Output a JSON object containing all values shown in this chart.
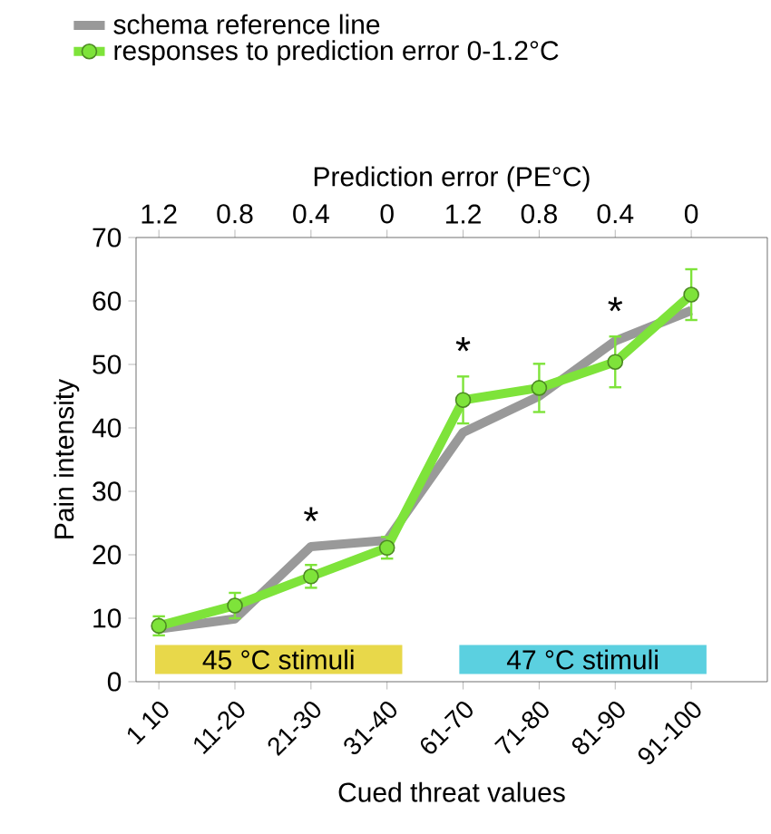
{
  "chart_data": {
    "type": "line",
    "xlabel": "Cued threat values",
    "ylabel": "Pain intensity",
    "x2label": "Prediction error (PE°C)",
    "categories": [
      "1 10",
      "11-20",
      "21-30",
      "31-40",
      "61-70",
      "71-80",
      "81-90",
      "91-100"
    ],
    "series": [
      {
        "name": "schema reference line",
        "color": "#999999",
        "marker": "none",
        "values": [
          8.3,
          9.9,
          21.3,
          22.3,
          39.3,
          45,
          53.7,
          58.5
        ]
      },
      {
        "name": "responses to prediction error 0-1.2°C",
        "color": "#7ee33a",
        "marker": "circle",
        "values": [
          8.8,
          12.0,
          16.6,
          21.1,
          44.4,
          46.3,
          50.4,
          61.0
        ],
        "errors": [
          1.5,
          2,
          1.8,
          1.7,
          3.7,
          3.8,
          4,
          4
        ]
      }
    ],
    "ylim": [
      0,
      70
    ],
    "yticks": [
      0,
      10,
      20,
      30,
      40,
      50,
      60,
      70
    ],
    "bands": [
      {
        "axis": "x",
        "from": "1 10",
        "to": "31-40",
        "label": "45 °C stimuli",
        "color": "#e8d84a"
      },
      {
        "axis": "x",
        "from": "61-70",
        "to": "91-100",
        "label": "47 °C stimuli",
        "color": "#5bd0e0"
      }
    ],
    "annotations": [
      "1.2",
      "0.8",
      "0.4",
      "0",
      "1.2",
      "0.8",
      "0.4",
      "0",
      {
        "text": "*",
        "x": "21-30",
        "y": 21.3
      },
      {
        "text": "*",
        "x": "61-70",
        "y": 48.1
      },
      {
        "text": "*",
        "x": "81-90",
        "y": 54.4
      }
    ],
    "legend": "top",
    "grid": false,
    "line_style": "solid"
  }
}
